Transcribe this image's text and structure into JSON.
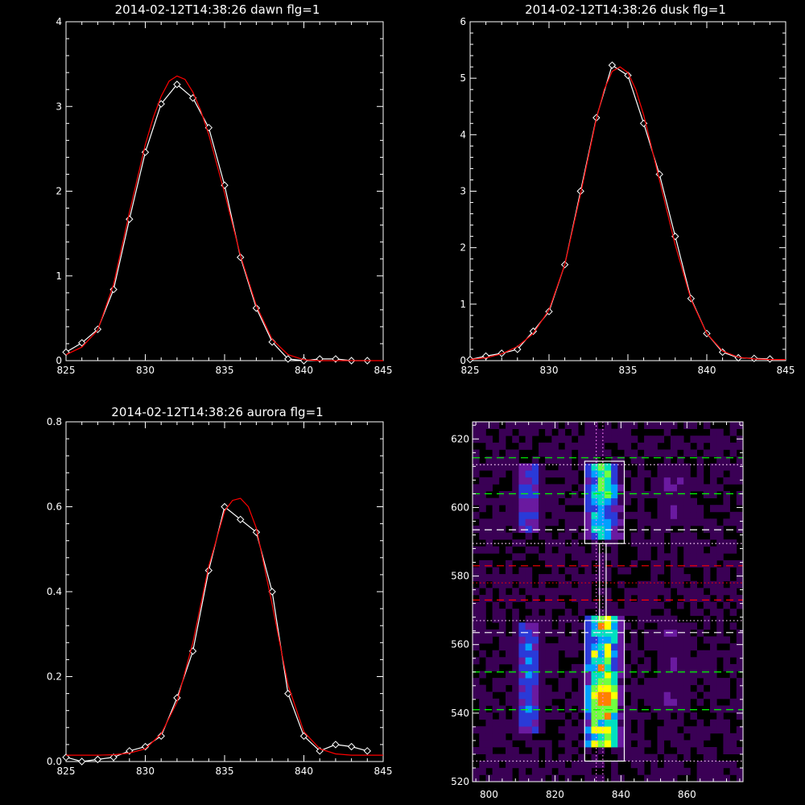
{
  "chart_data": [
    {
      "type": "line",
      "title": "2014-02-12T14:38:26 dawn flg=1",
      "xlim": [
        825,
        845
      ],
      "ylim": [
        0,
        4
      ],
      "xticks": [
        825,
        830,
        835,
        840,
        845
      ],
      "yticks": [
        0,
        1,
        2,
        3,
        4
      ],
      "series": [
        {
          "color": "#ffffff",
          "marker": "diamond",
          "x": [
            825,
            826,
            827,
            828,
            829,
            830,
            831,
            832,
            833,
            834,
            835,
            836,
            837,
            838,
            839,
            840,
            841,
            842,
            843,
            844
          ],
          "y": [
            0.1,
            0.21,
            0.37,
            0.84,
            1.67,
            2.46,
            3.03,
            3.26,
            3.1,
            2.75,
            2.07,
            1.22,
            0.62,
            0.22,
            0.02,
            0.0,
            0.02,
            0.02,
            0.0,
            0.0
          ]
        },
        {
          "color": "#ff0000",
          "marker": "none",
          "x": [
            825,
            826,
            827,
            828,
            829,
            830,
            830.5,
            831,
            831.5,
            832,
            832.5,
            833,
            833.5,
            834,
            835,
            836,
            837,
            838,
            839,
            840,
            841,
            842,
            843,
            844,
            845
          ],
          "y": [
            0.07,
            0.16,
            0.36,
            0.9,
            1.75,
            2.55,
            2.87,
            3.12,
            3.3,
            3.36,
            3.32,
            3.17,
            2.95,
            2.67,
            1.98,
            1.24,
            0.65,
            0.25,
            0.07,
            0.01,
            0,
            0,
            0,
            0,
            0
          ]
        }
      ]
    },
    {
      "type": "line",
      "title": "2014-02-12T14:38:26 dusk flg=1",
      "xlim": [
        825,
        845
      ],
      "ylim": [
        0,
        6
      ],
      "xticks": [
        825,
        830,
        835,
        840,
        845
      ],
      "yticks": [
        0,
        1,
        2,
        3,
        4,
        5,
        6
      ],
      "series": [
        {
          "color": "#ffffff",
          "marker": "diamond",
          "x": [
            825,
            826,
            827,
            828,
            829,
            830,
            831,
            832,
            833,
            834,
            835,
            836,
            837,
            838,
            839,
            840,
            841,
            842,
            843,
            844
          ],
          "y": [
            0.02,
            0.08,
            0.13,
            0.2,
            0.52,
            0.87,
            1.7,
            3.0,
            4.3,
            5.23,
            5.05,
            4.2,
            3.3,
            2.2,
            1.1,
            0.48,
            0.15,
            0.05,
            0.04,
            0.03
          ]
        },
        {
          "color": "#ff0000",
          "marker": "none",
          "x": [
            825,
            826,
            827,
            828,
            829,
            830,
            831,
            832,
            833,
            833.5,
            834,
            834.5,
            835,
            835.5,
            836,
            837,
            838,
            839,
            840,
            841,
            842,
            843,
            844,
            845
          ],
          "y": [
            0.02,
            0.05,
            0.12,
            0.25,
            0.48,
            0.9,
            1.7,
            2.95,
            4.28,
            4.8,
            5.12,
            5.2,
            5.1,
            4.8,
            4.35,
            3.2,
            2.05,
            1.08,
            0.48,
            0.17,
            0.06,
            0.03,
            0.02,
            0.02
          ]
        }
      ]
    },
    {
      "type": "line",
      "title": "2014-02-12T14:38:26 aurora flg=1",
      "xlim": [
        825,
        845
      ],
      "ylim": [
        0,
        0.8
      ],
      "xticks": [
        825,
        830,
        835,
        840,
        845
      ],
      "yticks": [
        0.0,
        0.2,
        0.4,
        0.6,
        0.8
      ],
      "ytick_labels": [
        "0.0",
        "0.2",
        "0.4",
        "0.6",
        "0.8"
      ],
      "series": [
        {
          "color": "#ffffff",
          "marker": "diamond",
          "x": [
            825,
            826,
            827,
            828,
            829,
            830,
            831,
            832,
            833,
            834,
            835,
            836,
            837,
            838,
            839,
            840,
            841,
            842,
            843,
            844
          ],
          "y": [
            0.01,
            0.0,
            0.005,
            0.01,
            0.025,
            0.035,
            0.06,
            0.15,
            0.26,
            0.45,
            0.6,
            0.57,
            0.54,
            0.4,
            0.16,
            0.06,
            0.025,
            0.04,
            0.035,
            0.025
          ]
        },
        {
          "color": "#ff0000",
          "marker": "none",
          "x": [
            825,
            826,
            827,
            828,
            829,
            830,
            831,
            832,
            833,
            834,
            835,
            835.5,
            836,
            836.5,
            837,
            838,
            839,
            840,
            841,
            842,
            843,
            844,
            845
          ],
          "y": [
            0.015,
            0.015,
            0.015,
            0.016,
            0.02,
            0.03,
            0.065,
            0.14,
            0.28,
            0.46,
            0.59,
            0.615,
            0.62,
            0.6,
            0.55,
            0.37,
            0.18,
            0.07,
            0.03,
            0.018,
            0.015,
            0.015,
            0.015
          ]
        }
      ]
    },
    {
      "type": "heatmap",
      "xlim": [
        795,
        877
      ],
      "ylim": [
        520,
        625
      ],
      "xticks": [
        800,
        820,
        840,
        860
      ],
      "yticks": [
        520,
        540,
        560,
        580,
        600,
        620
      ],
      "colormap": [
        "#000000",
        "#3a0055",
        "#6a1aa0",
        "#2a3ad8",
        "#00a0ff",
        "#00e0c0",
        "#70ff40",
        "#ffff00",
        "#ff8000",
        "#ff0000"
      ],
      "bright_columns": [
        {
          "x": [
            808,
            816
          ],
          "segments": [
            {
              "y": [
                592,
                612
              ],
              "peak": 0.45
            },
            {
              "y": [
                535,
                566
              ],
              "peak": 0.5
            }
          ]
        },
        {
          "x": [
            829,
            840
          ],
          "segments": [
            {
              "y": [
                590,
                613
              ],
              "peak": 0.75
            },
            {
              "y": [
                530,
                569
              ],
              "peak": 1.0
            }
          ]
        },
        {
          "x": [
            851,
            860
          ],
          "segments": [
            {
              "y": [
                595,
                610
              ],
              "peak": 0.25
            },
            {
              "y": [
                540,
                566
              ],
              "peak": 0.22
            }
          ]
        }
      ],
      "hotspot": {
        "x": 835,
        "y": 545
      },
      "boxes": [
        {
          "x": [
            829,
            841
          ],
          "y": [
            589.5,
            613.5
          ],
          "color": "#ffffff"
        },
        {
          "x": [
            829,
            841
          ],
          "y": [
            526,
            567
          ],
          "color": "#ffffff"
        },
        {
          "x": [
            833.5,
            835.5
          ],
          "y": [
            567,
            589.5
          ],
          "color": "#ffffff"
        }
      ],
      "vlines": [
        {
          "x": 832.5,
          "color": "#ff80ff",
          "style": "dotted"
        },
        {
          "x": 834.5,
          "color": "#ff80ff",
          "style": "dotted"
        }
      ],
      "hlines": [
        {
          "y": 614.5,
          "color": "#00ff00",
          "style": "dashed"
        },
        {
          "y": 612.5,
          "color": "#ffd0ff",
          "style": "dotted"
        },
        {
          "y": 604,
          "color": "#00ff00",
          "style": "dashed"
        },
        {
          "y": 593.5,
          "color": "#ffffff",
          "style": "dashed"
        },
        {
          "y": 589.5,
          "color": "#ffd0ff",
          "style": "dotted"
        },
        {
          "y": 583,
          "color": "#ff0000",
          "style": "dashed"
        },
        {
          "y": 578,
          "color": "#ff0000",
          "style": "dotted"
        },
        {
          "y": 573,
          "color": "#ff0000",
          "style": "dashed"
        },
        {
          "y": 567,
          "color": "#ffd0ff",
          "style": "dotted"
        },
        {
          "y": 563.5,
          "color": "#ffffff",
          "style": "dashed"
        },
        {
          "y": 552,
          "color": "#00ff00",
          "style": "dashed"
        },
        {
          "y": 541,
          "color": "#00ff00",
          "style": "dashed"
        },
        {
          "y": 526,
          "color": "#ffd0ff",
          "style": "dotted"
        }
      ]
    }
  ]
}
